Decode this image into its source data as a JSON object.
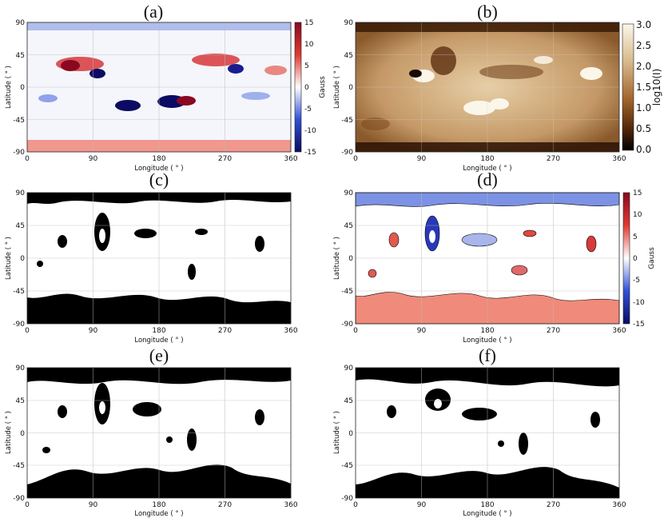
{
  "chart_data": [
    {
      "type": "heatmap",
      "panel": "(a)",
      "xlabel": "Longitude ( ° )",
      "ylabel": "Latitude ( ° )",
      "xticks": [
        "0",
        "90",
        "180",
        "270",
        "360"
      ],
      "yticks": [
        "90",
        "45",
        "0",
        "-45",
        "-90"
      ],
      "xlim": [
        0,
        360
      ],
      "ylim": [
        -90,
        90
      ],
      "grid": true,
      "colorbar": {
        "label": "Gauss",
        "ticks": [
          "15",
          "10",
          "5",
          "0",
          "-5",
          "-10",
          "-15"
        ],
        "range": [
          -15,
          15
        ],
        "colors": [
          "#0b0b63",
          "#3050d8",
          "#ffffff",
          "#e03a30",
          "#8a0820"
        ]
      }
    },
    {
      "type": "heatmap",
      "panel": "(b)",
      "xlabel": "Longitude ( ° )",
      "ylabel": "Latitude ( ° )",
      "xticks": [
        "0",
        "90",
        "180",
        "270",
        "360"
      ],
      "yticks": [
        "90",
        "45",
        "0",
        "-45",
        "-90"
      ],
      "xlim": [
        0,
        360
      ],
      "ylim": [
        -90,
        90
      ],
      "grid": true,
      "colorbar": {
        "label": "log10(I)",
        "ticks": [
          "3.0",
          "2.5",
          "2.0",
          "1.5",
          "1.0",
          "0.5",
          "0.0"
        ],
        "range": [
          0.0,
          3.0
        ],
        "colors": [
          "#000000",
          "#4a2208",
          "#a0642a",
          "#d8b88a",
          "#fbf6ea"
        ]
      }
    },
    {
      "type": "heatmap",
      "panel": "(c)",
      "xlabel": "Longitude ( ° )",
      "ylabel": "Latitude ( ° )",
      "xticks": [
        "0",
        "90",
        "180",
        "270",
        "360"
      ],
      "yticks": [
        "90",
        "45",
        "0",
        "-45",
        "-90"
      ],
      "xlim": [
        0,
        360
      ],
      "ylim": [
        -90,
        90
      ],
      "grid": true
    },
    {
      "type": "heatmap",
      "panel": "(d)",
      "xlabel": "Longitude ( ° )",
      "ylabel": "Latitude ( ° )",
      "xticks": [
        "0",
        "90",
        "180",
        "270",
        "360"
      ],
      "yticks": [
        "90",
        "45",
        "0",
        "-45",
        "-90"
      ],
      "xlim": [
        0,
        360
      ],
      "ylim": [
        -90,
        90
      ],
      "grid": true,
      "colorbar": {
        "label": "Gauss",
        "ticks": [
          "15",
          "10",
          "5",
          "0",
          "-5",
          "-10",
          "-15"
        ],
        "range": [
          -15,
          15
        ],
        "colors": [
          "#0b0b63",
          "#3050d8",
          "#ffffff",
          "#e03a30",
          "#8a0820"
        ]
      }
    },
    {
      "type": "heatmap",
      "panel": "(e)",
      "xlabel": "Longitude ( ° )",
      "ylabel": "Latitude ( ° )",
      "xticks": [
        "0",
        "90",
        "180",
        "270",
        "360"
      ],
      "yticks": [
        "90",
        "45",
        "0",
        "-45",
        "-90"
      ],
      "xlim": [
        0,
        360
      ],
      "ylim": [
        -90,
        90
      ],
      "grid": true
    },
    {
      "type": "heatmap",
      "panel": "(f)",
      "xlabel": "Longitude ( ° )",
      "ylabel": "Latitude ( ° )",
      "xticks": [
        "0",
        "90",
        "180",
        "270",
        "360"
      ],
      "yticks": [
        "90",
        "45",
        "0",
        "-45",
        "-90"
      ],
      "xlim": [
        0,
        360
      ],
      "ylim": [
        -90,
        90
      ],
      "grid": true
    }
  ]
}
